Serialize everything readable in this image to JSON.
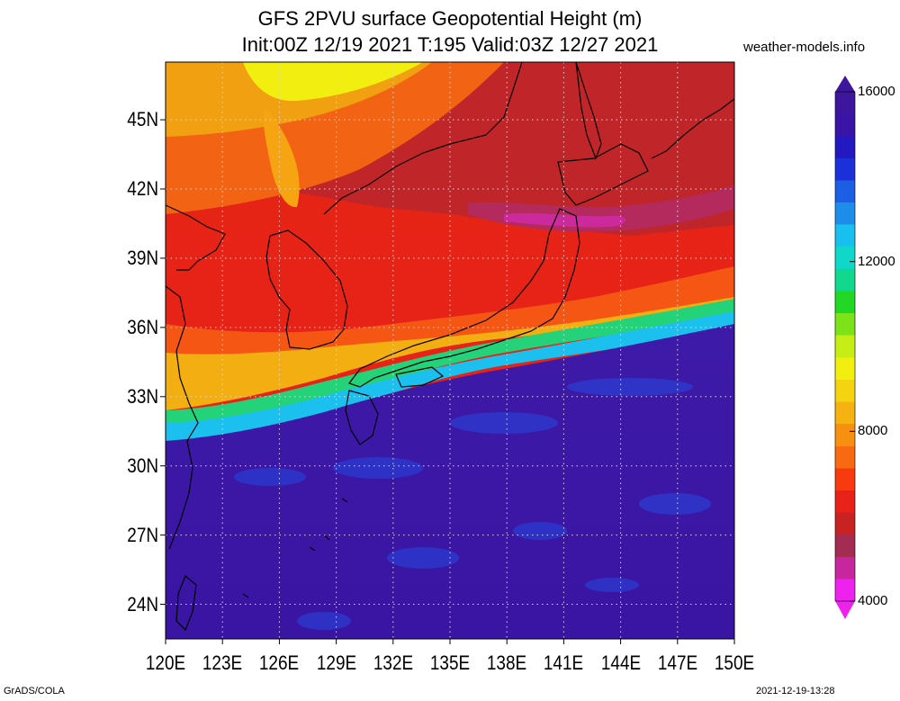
{
  "header": {
    "title_line1": "GFS 2PVU surface Geopotential Height (m)",
    "title_line2": "Init:00Z 12/19 2021 T:195 Valid:03Z 12/27 2021",
    "credit": "weather-models.info"
  },
  "footer": {
    "left": "GrADS/COLA",
    "right": "2021-12-19-13:28"
  },
  "map": {
    "projection": "latlon",
    "lon_range": [
      120,
      150
    ],
    "lat_range": [
      22.5,
      47.5
    ],
    "lon_ticks": [
      "120E",
      "123E",
      "126E",
      "129E",
      "132E",
      "135E",
      "138E",
      "141E",
      "144E",
      "147E",
      "150E"
    ],
    "lat_ticks": [
      "24N",
      "27N",
      "30N",
      "33N",
      "36N",
      "39N",
      "42N",
      "45N"
    ],
    "grid": true,
    "grid_style": "dotted",
    "colors": {
      "low_tropics": "#3a14a6",
      "jet_core": "#21c4f0",
      "mid_red": "#e82218",
      "orange": "#f07a10",
      "yellow": "#f2ee10",
      "trough_magenta": "#c8289a",
      "coastline": "#000000"
    }
  },
  "colorbar": {
    "min": 4000,
    "max": 16000,
    "tick_labels": [
      "4000",
      "8000",
      "12000",
      "16000"
    ],
    "tick_values": [
      4000,
      8000,
      12000,
      16000
    ],
    "color_stops": [
      "#ee22ee",
      "#c8269f",
      "#a42c52",
      "#c82222",
      "#e82218",
      "#f73a10",
      "#f86a12",
      "#f79010",
      "#f6b210",
      "#f4d410",
      "#f2ee10",
      "#c6ee16",
      "#7ce21a",
      "#22d824",
      "#12d88e",
      "#10d8c8",
      "#18c0f0",
      "#1c8eea",
      "#1c5ee4",
      "#1b30d8",
      "#2418c0",
      "#3a14a6",
      "#3e169e"
    ]
  }
}
